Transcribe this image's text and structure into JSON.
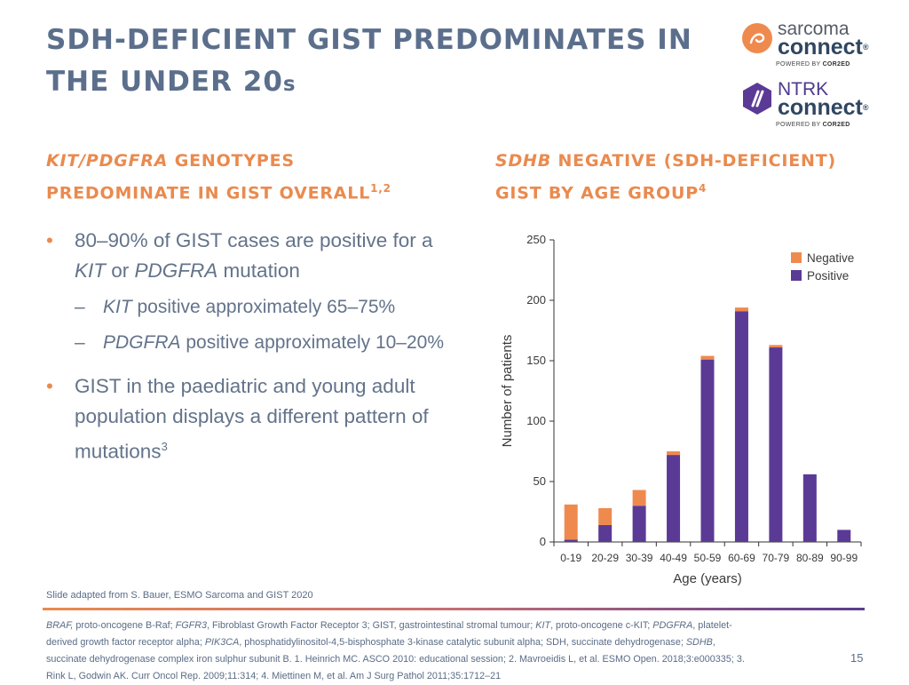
{
  "title": {
    "line1": "SDH-DEFICIENT GIST PREDOMINATES IN",
    "line2_main": "THE UNDER 20",
    "line2_small": "s"
  },
  "logos": {
    "sarcoma": {
      "top": "sarcoma",
      "main": "connect",
      "reg": "®",
      "powered_prefix": "POWERED BY ",
      "powered_brand": "COR2ED"
    },
    "ntrk": {
      "top": "NTRK",
      "main": "connect",
      "reg": "®",
      "powered_prefix": "POWERED BY ",
      "powered_brand": "COR2ED"
    }
  },
  "left_heading": {
    "italic": "KIT/PDGFRA",
    "rest1": " GENOTYPES",
    "line2": "PREDOMINATE IN GIST OVERALL",
    "sup": "1,2"
  },
  "right_heading": {
    "italic": "SDHB",
    "rest1": " NEGATIVE (SDH-DEFICIENT)",
    "line2": "GIST BY AGE GROUP",
    "sup": "4"
  },
  "bullets": {
    "b1": {
      "bullet": "•",
      "part1": "80–90% of GIST cases are positive for a ",
      "kit": "KIT",
      "or": " or ",
      "pdgfra": "PDGFRA",
      "part2": " mutation"
    },
    "s1": {
      "dash": "–",
      "italic": "KIT",
      "rest": " positive approximately 65–75%"
    },
    "s2": {
      "dash": "–",
      "italic": "PDGFRA",
      "rest": " positive approximately 10–20%"
    },
    "b2": {
      "bullet": "•",
      "text": "GIST in the paediatric and young adult population displays a different pattern of mutations",
      "sup": "3"
    }
  },
  "chart_data": {
    "type": "bar",
    "stacked": true,
    "categories": [
      "0-19",
      "20-29",
      "30-39",
      "40-49",
      "50-59",
      "60-69",
      "70-79",
      "80-89",
      "90-99"
    ],
    "series": [
      {
        "name": "Positive",
        "color": "#5b3a96",
        "values": [
          2,
          14,
          30,
          72,
          151,
          191,
          161,
          56,
          10
        ]
      },
      {
        "name": "Negative",
        "color": "#ef8a4f",
        "values": [
          29,
          14,
          13,
          3,
          3,
          3,
          2,
          0,
          0
        ]
      }
    ],
    "legend": [
      "Negative",
      "Positive"
    ],
    "xlabel": "Age (years)",
    "ylabel": "Number of patients",
    "ylim": [
      0,
      250
    ],
    "yticks": [
      0,
      50,
      100,
      150,
      200,
      250
    ]
  },
  "source": "Slide adapted from S. Bauer, ESMO Sarcoma and GIST 2020",
  "footnote": {
    "line1": [
      [
        "i",
        "BRAF,"
      ],
      [
        "n",
        " proto-oncogene B-Raf; "
      ],
      [
        "i",
        "FGFR3"
      ],
      [
        "n",
        ", Fibroblast Growth Factor Receptor 3; GIST, gastrointestinal stromal tumour; "
      ],
      [
        "i",
        "KIT"
      ],
      [
        "n",
        ", proto-oncogene c-KIT; "
      ],
      [
        "i",
        "PDGFRA"
      ],
      [
        "n",
        ", platelet-"
      ]
    ],
    "line2": [
      [
        "n",
        "derived growth factor receptor alpha; "
      ],
      [
        "i",
        "PIK3CA"
      ],
      [
        "n",
        ", phosphatidylinositol-4,5-bisphosphate 3-kinase catalytic subunit alpha; SDH, succinate dehydrogenase; "
      ],
      [
        "i",
        "SDHB"
      ],
      [
        "n",
        ","
      ]
    ],
    "line3": [
      [
        "n",
        "succinate dehydrogenase complex iron sulphur subunit B. 1. Heinrich MC. ASCO 2010: educational session; 2. Mavroeidis L, et al. ESMO Open. 2018;3:e000335; 3."
      ]
    ],
    "line4": [
      [
        "n",
        "Rink L, Godwin AK. Curr Oncol Rep. 2009;11:314; 4. Miettinen M, et al. Am J Surg Pathol 2011;35:1712–21"
      ]
    ]
  },
  "page_number": "15"
}
